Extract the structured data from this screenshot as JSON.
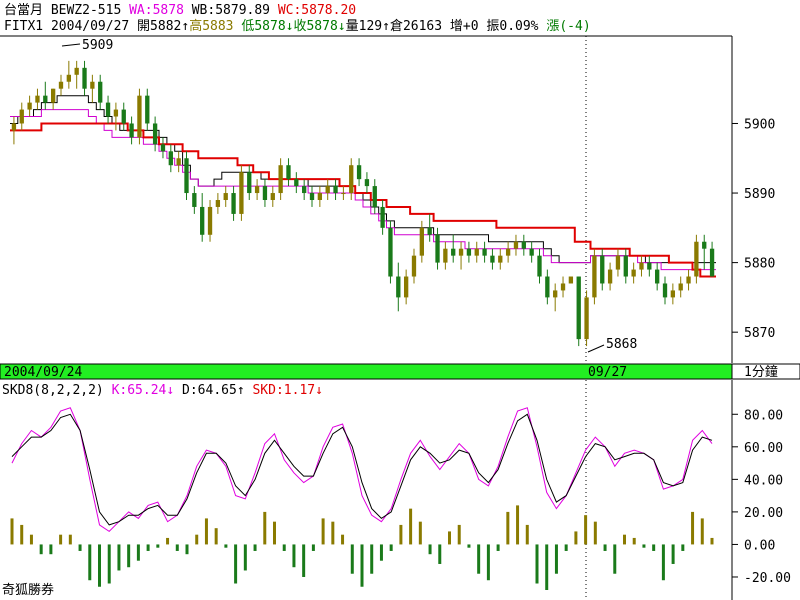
{
  "header": {
    "line1": [
      {
        "text": "台當月 ",
        "color": "#000000"
      },
      {
        "text": "BEWZ2-515 ",
        "color": "#000000"
      },
      {
        "text": "WA:5878 ",
        "color": "#e000e0"
      },
      {
        "text": "WB:5879.89 ",
        "color": "#000000"
      },
      {
        "text": "WC:5878.20",
        "color": "#e00000"
      }
    ],
    "line2": [
      {
        "text": "FITX1 2004/09/27 開5882",
        "color": "#000000"
      },
      {
        "text": "↑",
        "color": "#000000"
      },
      {
        "text": "高5883 ",
        "color": "#8a7a00"
      },
      {
        "text": "低5878",
        "color": "#007a00"
      },
      {
        "text": "↓",
        "color": "#007a00"
      },
      {
        "text": "收5878",
        "color": "#007a00"
      },
      {
        "text": "↓",
        "color": "#007a00"
      },
      {
        "text": "量129",
        "color": "#000000"
      },
      {
        "text": "↑",
        "color": "#000000"
      },
      {
        "text": "倉26163 增+0 振0.09% ",
        "color": "#000000"
      },
      {
        "text": "漲(-4)",
        "color": "#007a00"
      }
    ]
  },
  "divider": {
    "date_left": "2004/09/24",
    "date_right": "09/27",
    "interval": "1分鐘"
  },
  "indicator_header": [
    {
      "text": "SKD8(8,2,2,2) ",
      "color": "#000000"
    },
    {
      "text": "K:65.24",
      "color": "#e000e0"
    },
    {
      "text": "↓",
      "color": "#e000e0"
    },
    {
      "text": " D:64.65",
      "color": "#000000"
    },
    {
      "text": "↑",
      "color": "#000000"
    },
    {
      "text": " SKD:1.17",
      "color": "#e00000"
    },
    {
      "text": "↓",
      "color": "#e00000"
    }
  ],
  "footer_label": "奇狐勝券",
  "annotations": {
    "high": "5909",
    "low": "5868"
  },
  "colors": {
    "up": "#8a7a00",
    "down": "#1a7a1a",
    "ma_red": "#e00000",
    "ma_magenta": "#d000d0",
    "ma_black": "#000000",
    "green_bar": "#22ee22",
    "k_line": "#e000e0",
    "d_line": "#000000"
  },
  "chart_data": [
    {
      "type": "candlestick",
      "title": "FITX1 1-minute",
      "y_ticks": [
        5870,
        5880,
        5890,
        5900
      ],
      "ylim": [
        5866,
        5912
      ],
      "session_break_label": "09/27",
      "candles": [
        [
          5899,
          5901,
          5897,
          5900
        ],
        [
          5900,
          5903,
          5899,
          5902
        ],
        [
          5902,
          5904,
          5901,
          5903
        ],
        [
          5903,
          5905,
          5902,
          5904
        ],
        [
          5904,
          5906,
          5902,
          5903
        ],
        [
          5903,
          5905,
          5902,
          5905
        ],
        [
          5905,
          5907,
          5904,
          5906
        ],
        [
          5906,
          5909,
          5905,
          5907
        ],
        [
          5907,
          5909,
          5905,
          5908
        ],
        [
          5908,
          5909,
          5904,
          5905
        ],
        [
          5905,
          5907,
          5903,
          5906
        ],
        [
          5906,
          5907,
          5902,
          5903
        ],
        [
          5903,
          5904,
          5900,
          5901
        ],
        [
          5901,
          5903,
          5899,
          5902
        ],
        [
          5902,
          5903,
          5899,
          5900
        ],
        [
          5900,
          5901,
          5897,
          5898
        ],
        [
          5898,
          5905,
          5897,
          5904
        ],
        [
          5904,
          5905,
          5899,
          5900
        ],
        [
          5900,
          5901,
          5896,
          5897
        ],
        [
          5897,
          5898,
          5895,
          5896
        ],
        [
          5896,
          5897,
          5893,
          5894
        ],
        [
          5894,
          5896,
          5893,
          5895
        ],
        [
          5895,
          5896,
          5889,
          5890
        ],
        [
          5890,
          5891,
          5887,
          5888
        ],
        [
          5888,
          5890,
          5883,
          5884
        ],
        [
          5884,
          5889,
          5883,
          5888
        ],
        [
          5888,
          5890,
          5887,
          5889
        ],
        [
          5889,
          5891,
          5888,
          5890
        ],
        [
          5890,
          5891,
          5886,
          5887
        ],
        [
          5887,
          5894,
          5886,
          5893
        ],
        [
          5893,
          5894,
          5889,
          5890
        ],
        [
          5890,
          5892,
          5889,
          5891
        ],
        [
          5891,
          5892,
          5888,
          5889
        ],
        [
          5889,
          5891,
          5888,
          5890
        ],
        [
          5890,
          5895,
          5889,
          5894
        ],
        [
          5894,
          5895,
          5891,
          5892
        ],
        [
          5892,
          5893,
          5890,
          5891
        ],
        [
          5891,
          5892,
          5889,
          5890
        ],
        [
          5890,
          5891,
          5888,
          5889
        ],
        [
          5889,
          5891,
          5888,
          5890
        ],
        [
          5890,
          5892,
          5889,
          5891
        ],
        [
          5891,
          5892,
          5889,
          5890
        ],
        [
          5890,
          5891,
          5889,
          5890
        ],
        [
          5890,
          5895,
          5889,
          5894
        ],
        [
          5894,
          5895,
          5891,
          5892
        ],
        [
          5892,
          5893,
          5890,
          5891
        ],
        [
          5891,
          5892,
          5887,
          5888
        ],
        [
          5888,
          5889,
          5884,
          5885
        ],
        [
          5885,
          5886,
          5877,
          5878
        ],
        [
          5878,
          5880,
          5873,
          5875
        ],
        [
          5875,
          5879,
          5874,
          5878
        ],
        [
          5878,
          5882,
          5877,
          5881
        ],
        [
          5881,
          5886,
          5880,
          5885
        ],
        [
          5885,
          5887,
          5883,
          5884
        ],
        [
          5884,
          5885,
          5879,
          5880
        ],
        [
          5880,
          5883,
          5879,
          5882
        ],
        [
          5882,
          5884,
          5880,
          5881
        ],
        [
          5881,
          5883,
          5879,
          5882
        ],
        [
          5882,
          5883,
          5880,
          5881
        ],
        [
          5881,
          5883,
          5880,
          5882
        ],
        [
          5882,
          5883,
          5880,
          5881
        ],
        [
          5881,
          5882,
          5879,
          5880
        ],
        [
          5880,
          5882,
          5879,
          5881
        ],
        [
          5881,
          5883,
          5880,
          5882
        ],
        [
          5882,
          5884,
          5881,
          5883
        ],
        [
          5883,
          5884,
          5881,
          5882
        ],
        [
          5882,
          5883,
          5880,
          5881
        ],
        [
          5881,
          5882,
          5877,
          5878
        ],
        [
          5878,
          5879,
          5874,
          5875
        ],
        [
          5875,
          5877,
          5873,
          5876
        ],
        [
          5876,
          5878,
          5875,
          5877
        ],
        [
          5877,
          5878,
          5877,
          5878
        ],
        [
          5878,
          5878,
          5868,
          5869
        ],
        [
          5869,
          5876,
          5868,
          5875
        ],
        [
          5875,
          5882,
          5874,
          5881
        ],
        [
          5881,
          5882,
          5876,
          5877
        ],
        [
          5877,
          5880,
          5876,
          5879
        ],
        [
          5879,
          5882,
          5878,
          5881
        ],
        [
          5881,
          5882,
          5877,
          5878
        ],
        [
          5878,
          5880,
          5877,
          5879
        ],
        [
          5879,
          5881,
          5878,
          5880
        ],
        [
          5880,
          5881,
          5878,
          5879
        ],
        [
          5879,
          5880,
          5876,
          5877
        ],
        [
          5877,
          5878,
          5874,
          5875
        ],
        [
          5875,
          5877,
          5874,
          5876
        ],
        [
          5876,
          5878,
          5875,
          5877
        ],
        [
          5877,
          5879,
          5876,
          5878
        ],
        [
          5878,
          5884,
          5877,
          5883
        ],
        [
          5883,
          5884,
          5879,
          5882
        ],
        [
          5882,
          5883,
          5878,
          5878
        ]
      ],
      "ma_red": [
        5899,
        5899,
        5899,
        5899,
        5900,
        5900,
        5900,
        5900,
        5900,
        5900,
        5900,
        5900,
        5900,
        5900,
        5900,
        5899,
        5899,
        5898,
        5898,
        5897,
        5897,
        5897,
        5896,
        5896,
        5895,
        5895,
        5895,
        5895,
        5895,
        5894,
        5894,
        5893,
        5893,
        5892,
        5892,
        5892,
        5892,
        5892,
        5892,
        5892,
        5892,
        5892,
        5891,
        5891,
        5890,
        5890,
        5889,
        5889,
        5888,
        5888,
        5888,
        5887,
        5887,
        5887,
        5886,
        5886,
        5886,
        5886,
        5886,
        5886,
        5886,
        5886,
        5885,
        5885,
        5885,
        5885,
        5885,
        5885,
        5885,
        5885,
        5885,
        5885,
        5883,
        5883,
        5882,
        5882,
        5882,
        5882,
        5882,
        5881,
        5881,
        5881,
        5881,
        5881,
        5880,
        5880,
        5880,
        5879,
        5878,
        5878
      ],
      "ma_black": [
        5900,
        5901,
        5901,
        5902,
        5903,
        5903,
        5904,
        5904,
        5904,
        5904,
        5903,
        5902,
        5901,
        5900,
        5899,
        5899,
        5899,
        5899,
        5899,
        5898,
        5897,
        5896,
        5894,
        5892,
        5891,
        5891,
        5892,
        5893,
        5893,
        5893,
        5893,
        5893,
        5892,
        5892,
        5892,
        5892,
        5892,
        5892,
        5891,
        5891,
        5891,
        5891,
        5891,
        5891,
        5890,
        5889,
        5888,
        5887,
        5886,
        5885,
        5885,
        5885,
        5885,
        5885,
        5884,
        5884,
        5884,
        5884,
        5884,
        5884,
        5884,
        5883,
        5883,
        5883,
        5883,
        5883,
        5883,
        5883,
        5882,
        5881,
        5880,
        5880,
        5880,
        5880,
        5881,
        5881,
        5881,
        5881,
        5881,
        5881,
        5881,
        5880,
        5880,
        5880,
        5880,
        5880,
        5880,
        5880,
        5880,
        5880
      ],
      "ma_magenta": [
        5901,
        5901,
        5901,
        5901,
        5902,
        5902,
        5902,
        5902,
        5902,
        5902,
        5901,
        5900,
        5899,
        5898,
        5898,
        5898,
        5898,
        5897,
        5897,
        5896,
        5895,
        5894,
        5893,
        5892,
        5891,
        5891,
        5891,
        5891,
        5891,
        5891,
        5891,
        5891,
        5891,
        5891,
        5891,
        5891,
        5891,
        5891,
        5890,
        5890,
        5890,
        5890,
        5890,
        5890,
        5889,
        5888,
        5887,
        5886,
        5885,
        5884,
        5884,
        5884,
        5884,
        5884,
        5883,
        5883,
        5883,
        5883,
        5882,
        5882,
        5882,
        5882,
        5882,
        5882,
        5882,
        5882,
        5882,
        5882,
        5881,
        5880,
        5880,
        5880,
        5880,
        5880,
        5881,
        5881,
        5881,
        5881,
        5881,
        5881,
        5880,
        5880,
        5880,
        5879,
        5879,
        5879,
        5879,
        5879,
        5879,
        5879
      ]
    },
    {
      "type": "line",
      "title": "SKD8(8,2,2,2)",
      "y_ticks": [
        -20,
        0,
        20,
        40,
        60,
        80
      ],
      "ylim": [
        -28,
        90
      ],
      "series": [
        {
          "name": "K",
          "values": [
            50,
            62,
            70,
            66,
            72,
            82,
            84,
            70,
            40,
            12,
            8,
            14,
            20,
            16,
            24,
            26,
            14,
            18,
            30,
            48,
            58,
            56,
            48,
            30,
            28,
            44,
            62,
            68,
            52,
            44,
            38,
            42,
            60,
            72,
            74,
            56,
            30,
            18,
            14,
            22,
            40,
            56,
            64,
            54,
            46,
            54,
            62,
            56,
            40,
            36,
            48,
            66,
            82,
            84,
            60,
            32,
            22,
            30,
            44,
            58,
            66,
            60,
            48,
            56,
            58,
            56,
            52,
            34,
            36,
            40,
            64,
            70,
            62
          ]
        },
        {
          "name": "D",
          "values": [
            54,
            60,
            66,
            66,
            70,
            78,
            80,
            70,
            46,
            20,
            12,
            14,
            18,
            18,
            22,
            24,
            18,
            18,
            28,
            44,
            56,
            56,
            50,
            36,
            30,
            40,
            56,
            64,
            56,
            48,
            42,
            42,
            56,
            68,
            72,
            60,
            38,
            22,
            16,
            20,
            36,
            52,
            60,
            56,
            50,
            52,
            58,
            56,
            44,
            38,
            46,
            62,
            76,
            80,
            64,
            40,
            26,
            30,
            42,
            54,
            62,
            60,
            52,
            54,
            56,
            56,
            52,
            38,
            36,
            38,
            58,
            66,
            64
          ]
        }
      ],
      "bars": [
        16,
        12,
        6,
        -6,
        -6,
        6,
        6,
        -4,
        -22,
        -26,
        -24,
        -16,
        -14,
        -10,
        -4,
        -2,
        4,
        -4,
        -6,
        6,
        16,
        10,
        -2,
        -24,
        -16,
        -4,
        20,
        14,
        -4,
        -14,
        -20,
        -4,
        16,
        14,
        6,
        -18,
        -26,
        -18,
        -10,
        -4,
        12,
        22,
        14,
        -6,
        -12,
        8,
        12,
        -2,
        -18,
        -22,
        -4,
        20,
        24,
        12,
        -24,
        -28,
        -18,
        -4,
        8,
        18,
        14,
        -4,
        -18,
        6,
        4,
        -2,
        -4,
        -22,
        -12,
        -4,
        20,
        16,
        4
      ]
    }
  ]
}
